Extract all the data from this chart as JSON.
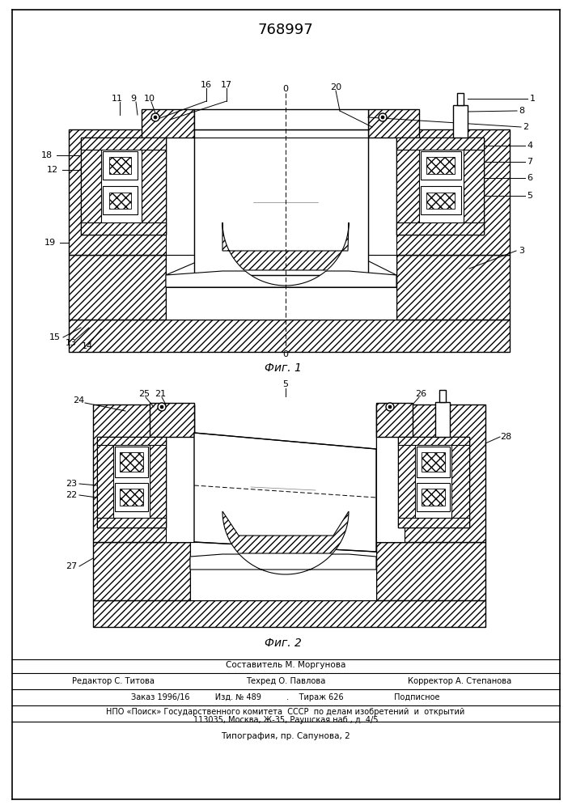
{
  "patent_number": "768997",
  "fig1_caption": "Фиг. 1",
  "fig2_caption": "Фиг. 2",
  "background_color": "#ffffff",
  "footer_line1_left": "Редактор С. Титова",
  "footer_line1_center": "Техред О. Павлова",
  "footer_line1_right": "Корректор А. Степанова",
  "footer_line2": "Заказ 1996/16          Изд. № 489          .    Тираж 626                    Подписное",
  "footer_line3": "НПО «Поиск» Государственного комитета  СССР  по делам изобретений  и  открытий",
  "footer_line4": "113035, Москва, Ж-35, Раушская наб., д. 4/5",
  "footer_line5": "Типография, пр. Сапунова, 2",
  "sestavitel": "Составитель М. Моргунова"
}
